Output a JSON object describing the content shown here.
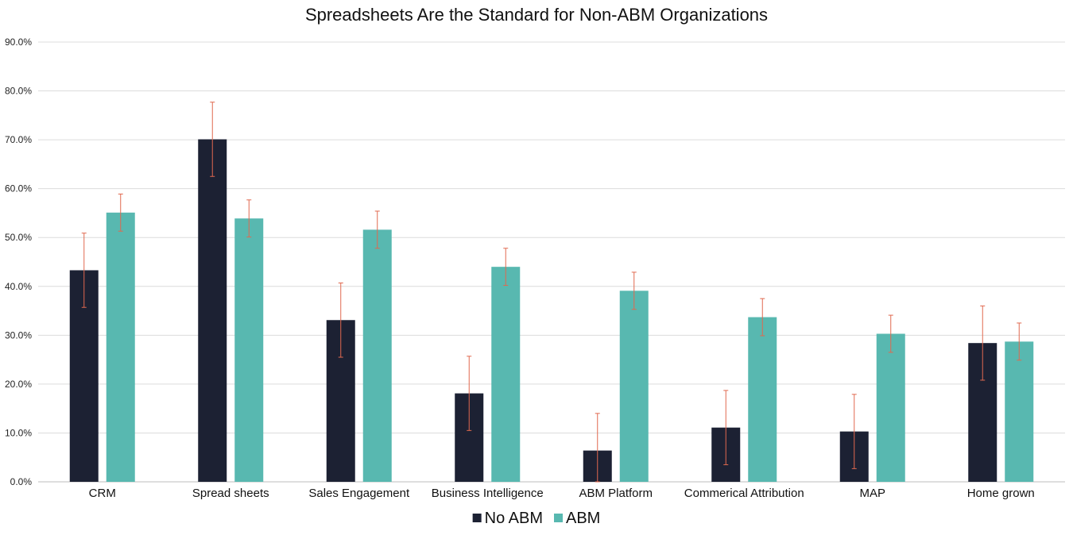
{
  "chart_data": {
    "type": "bar",
    "title": "Spreadsheets Are the Standard for Non-ABM Organizations",
    "categories": [
      "CRM",
      "Spread sheets",
      "Sales Engagement",
      "Business Intelligence",
      "ABM Platform",
      "Commerical Attribution",
      "MAP",
      "Home grown"
    ],
    "series": [
      {
        "name": "No ABM",
        "color": "#1c2133",
        "values": [
          43.3,
          70.1,
          33.1,
          18.1,
          6.4,
          11.1,
          10.3,
          28.4
        ],
        "error": [
          7.6,
          7.6,
          7.6,
          7.6,
          7.6,
          7.6,
          7.6,
          7.6
        ]
      },
      {
        "name": "ABM",
        "color": "#58b8b0",
        "values": [
          55.1,
          53.9,
          51.6,
          44.0,
          39.1,
          33.7,
          30.3,
          28.7
        ],
        "error": [
          3.8,
          3.8,
          3.8,
          3.8,
          3.8,
          3.8,
          3.8,
          3.8
        ]
      }
    ],
    "error_bar_color": "#e0694f",
    "y_ticks": [
      "0.0%",
      "10.0%",
      "20.0%",
      "30.0%",
      "40.0%",
      "50.0%",
      "60.0%",
      "70.0%",
      "80.0%",
      "90.0%"
    ],
    "ylim": [
      0,
      90
    ],
    "xlabel": "",
    "ylabel": "",
    "grid": true,
    "legend_position": "bottom"
  }
}
